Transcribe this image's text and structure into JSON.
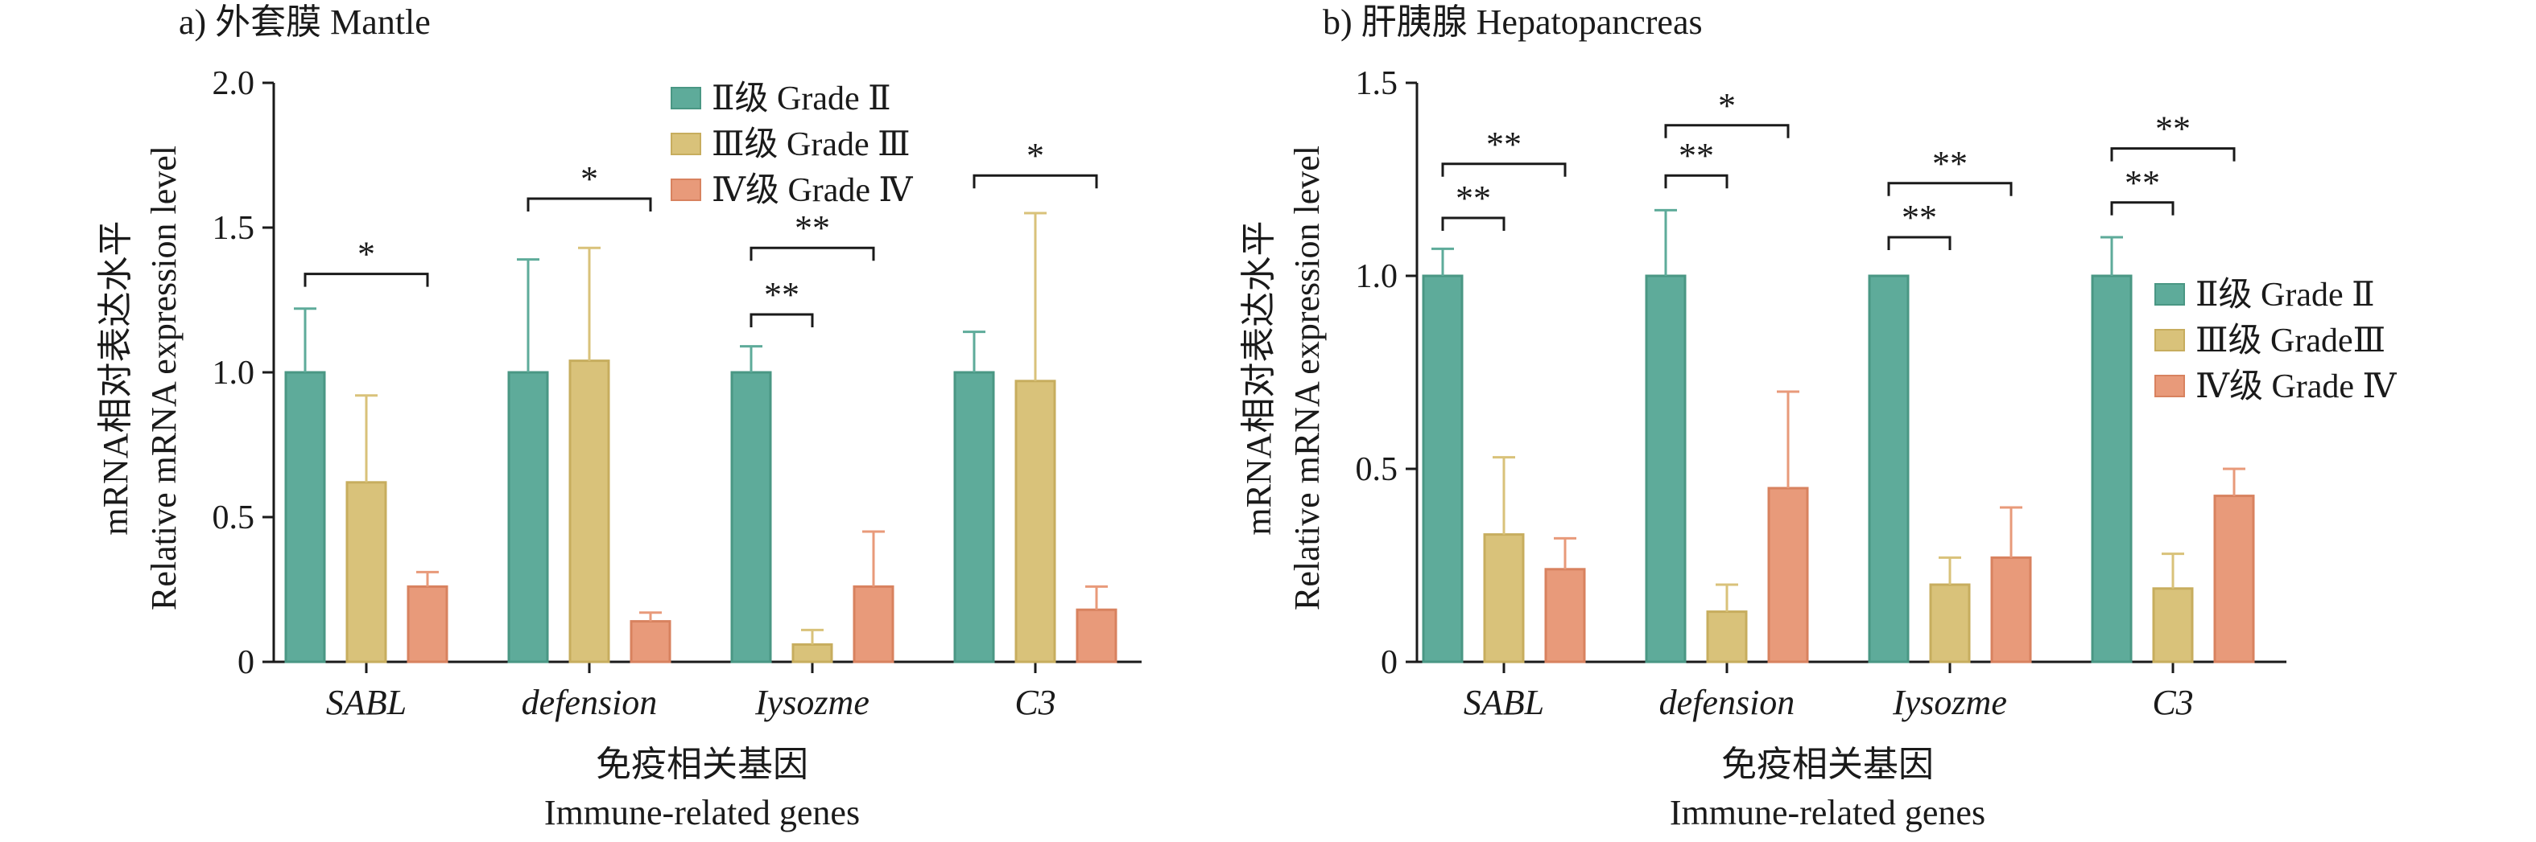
{
  "colors": {
    "grade2": {
      "fill": "#5eab9a",
      "stroke": "#4a9784"
    },
    "grade3": {
      "fill": "#d9c27a",
      "stroke": "#c7ad5e"
    },
    "grade4": {
      "fill": "#e89a7a",
      "stroke": "#d8825f"
    }
  },
  "chart_data": [
    {
      "type": "bar",
      "title": "a) 外套膜 Mantle",
      "xlabel": [
        "免疫相关基因",
        "Immune-related genes"
      ],
      "ylabel": [
        "mRNA相对表达水平",
        "Relative mRNA expression level"
      ],
      "ylim": [
        0,
        2.0
      ],
      "yticks": [
        0,
        0.5,
        1.0,
        1.5,
        2.0
      ],
      "ytick_labels": [
        "0",
        "0.5",
        "1.0",
        "1.5",
        "2.0"
      ],
      "categories": [
        "SABL",
        "defension",
        "Iysozme",
        "C3"
      ],
      "legend_position": "top-right",
      "series": [
        {
          "name": "Ⅱ级 Grade Ⅱ",
          "key": "grade2",
          "values": [
            1.0,
            1.0,
            1.0,
            1.0
          ],
          "errors": [
            0.22,
            0.39,
            0.09,
            0.14
          ]
        },
        {
          "name": "Ⅲ级 Grade Ⅲ",
          "key": "grade3",
          "values": [
            0.62,
            1.04,
            0.06,
            0.97
          ],
          "errors": [
            0.3,
            0.39,
            0.05,
            0.58
          ]
        },
        {
          "name": "Ⅳ级 Grade Ⅳ",
          "key": "grade4",
          "values": [
            0.26,
            0.14,
            0.26,
            0.18
          ],
          "errors": [
            0.05,
            0.03,
            0.19,
            0.08
          ]
        }
      ],
      "significance": [
        {
          "category": 0,
          "from": 0,
          "to": 2,
          "label": "*",
          "level": 1.34
        },
        {
          "category": 1,
          "from": 0,
          "to": 2,
          "label": "*",
          "level": 1.6
        },
        {
          "category": 2,
          "from": 0,
          "to": 1,
          "label": "**",
          "level": 1.2
        },
        {
          "category": 2,
          "from": 0,
          "to": 2,
          "label": "**",
          "level": 1.43
        },
        {
          "category": 3,
          "from": 0,
          "to": 2,
          "label": "*",
          "level": 1.68
        }
      ]
    },
    {
      "type": "bar",
      "title": "b) 肝胰腺 Hepatopancreas",
      "xlabel": [
        "免疫相关基因",
        "Immune-related genes"
      ],
      "ylabel": [
        "mRNA相对表达水平",
        "Relative mRNA expression level"
      ],
      "ylim": [
        0,
        1.5
      ],
      "yticks": [
        0,
        0.5,
        1.0,
        1.5
      ],
      "ytick_labels": [
        "0",
        "0.5",
        "1.0",
        "1.5"
      ],
      "categories": [
        "SABL",
        "defension",
        "Iysozme",
        "C3"
      ],
      "legend_position": "right",
      "series": [
        {
          "name": "Ⅱ级 Grade Ⅱ",
          "key": "grade2",
          "values": [
            1.0,
            1.0,
            1.0,
            1.0
          ],
          "errors": [
            0.07,
            0.17,
            0.0,
            0.1
          ]
        },
        {
          "name": "Ⅲ级 GradeⅢ",
          "key": "grade3",
          "values": [
            0.33,
            0.13,
            0.2,
            0.19
          ],
          "errors": [
            0.2,
            0.07,
            0.07,
            0.09
          ]
        },
        {
          "name": "Ⅳ级 Grade Ⅳ",
          "key": "grade4",
          "values": [
            0.24,
            0.45,
            0.27,
            0.43
          ],
          "errors": [
            0.08,
            0.25,
            0.13,
            0.07
          ]
        }
      ],
      "significance": [
        {
          "category": 0,
          "from": 0,
          "to": 1,
          "label": "**",
          "level": 1.15
        },
        {
          "category": 0,
          "from": 0,
          "to": 2,
          "label": "**",
          "level": 1.29
        },
        {
          "category": 1,
          "from": 0,
          "to": 1,
          "label": "**",
          "level": 1.26
        },
        {
          "category": 1,
          "from": 0,
          "to": 2,
          "label": "*",
          "level": 1.39
        },
        {
          "category": 2,
          "from": 0,
          "to": 1,
          "label": "**",
          "level": 1.1
        },
        {
          "category": 2,
          "from": 0,
          "to": 2,
          "label": "**",
          "level": 1.24
        },
        {
          "category": 3,
          "from": 0,
          "to": 1,
          "label": "**",
          "level": 1.19
        },
        {
          "category": 3,
          "from": 0,
          "to": 2,
          "label": "**",
          "level": 1.33
        }
      ]
    }
  ]
}
